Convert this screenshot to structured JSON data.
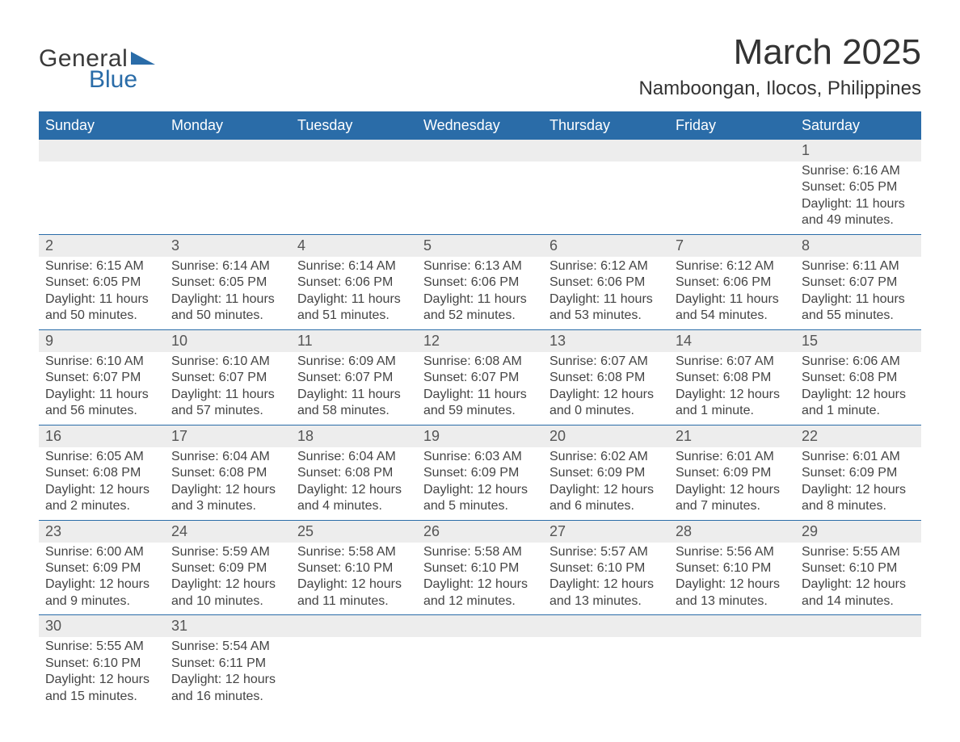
{
  "logo": {
    "text_general": "General",
    "text_blue": "Blue",
    "accent_color": "#2a6ca8"
  },
  "title": "March 2025",
  "location": "Namboongan, Ilocos, Philippines",
  "colors": {
    "header_bg": "#2a6ca8",
    "header_text": "#ffffff",
    "daynum_bg": "#ededed",
    "body_text": "#444444",
    "rule": "#2a6ca8",
    "page_bg": "#ffffff"
  },
  "typography": {
    "title_fontsize": 44,
    "location_fontsize": 24,
    "header_fontsize": 18,
    "daynum_fontsize": 18,
    "body_fontsize": 16
  },
  "day_headers": [
    "Sunday",
    "Monday",
    "Tuesday",
    "Wednesday",
    "Thursday",
    "Friday",
    "Saturday"
  ],
  "weeks": [
    [
      null,
      null,
      null,
      null,
      null,
      null,
      {
        "n": "1",
        "sunrise": "Sunrise: 6:16 AM",
        "sunset": "Sunset: 6:05 PM",
        "daylight": "Daylight: 11 hours and 49 minutes."
      }
    ],
    [
      {
        "n": "2",
        "sunrise": "Sunrise: 6:15 AM",
        "sunset": "Sunset: 6:05 PM",
        "daylight": "Daylight: 11 hours and 50 minutes."
      },
      {
        "n": "3",
        "sunrise": "Sunrise: 6:14 AM",
        "sunset": "Sunset: 6:05 PM",
        "daylight": "Daylight: 11 hours and 50 minutes."
      },
      {
        "n": "4",
        "sunrise": "Sunrise: 6:14 AM",
        "sunset": "Sunset: 6:06 PM",
        "daylight": "Daylight: 11 hours and 51 minutes."
      },
      {
        "n": "5",
        "sunrise": "Sunrise: 6:13 AM",
        "sunset": "Sunset: 6:06 PM",
        "daylight": "Daylight: 11 hours and 52 minutes."
      },
      {
        "n": "6",
        "sunrise": "Sunrise: 6:12 AM",
        "sunset": "Sunset: 6:06 PM",
        "daylight": "Daylight: 11 hours and 53 minutes."
      },
      {
        "n": "7",
        "sunrise": "Sunrise: 6:12 AM",
        "sunset": "Sunset: 6:06 PM",
        "daylight": "Daylight: 11 hours and 54 minutes."
      },
      {
        "n": "8",
        "sunrise": "Sunrise: 6:11 AM",
        "sunset": "Sunset: 6:07 PM",
        "daylight": "Daylight: 11 hours and 55 minutes."
      }
    ],
    [
      {
        "n": "9",
        "sunrise": "Sunrise: 6:10 AM",
        "sunset": "Sunset: 6:07 PM",
        "daylight": "Daylight: 11 hours and 56 minutes."
      },
      {
        "n": "10",
        "sunrise": "Sunrise: 6:10 AM",
        "sunset": "Sunset: 6:07 PM",
        "daylight": "Daylight: 11 hours and 57 minutes."
      },
      {
        "n": "11",
        "sunrise": "Sunrise: 6:09 AM",
        "sunset": "Sunset: 6:07 PM",
        "daylight": "Daylight: 11 hours and 58 minutes."
      },
      {
        "n": "12",
        "sunrise": "Sunrise: 6:08 AM",
        "sunset": "Sunset: 6:07 PM",
        "daylight": "Daylight: 11 hours and 59 minutes."
      },
      {
        "n": "13",
        "sunrise": "Sunrise: 6:07 AM",
        "sunset": "Sunset: 6:08 PM",
        "daylight": "Daylight: 12 hours and 0 minutes."
      },
      {
        "n": "14",
        "sunrise": "Sunrise: 6:07 AM",
        "sunset": "Sunset: 6:08 PM",
        "daylight": "Daylight: 12 hours and 1 minute."
      },
      {
        "n": "15",
        "sunrise": "Sunrise: 6:06 AM",
        "sunset": "Sunset: 6:08 PM",
        "daylight": "Daylight: 12 hours and 1 minute."
      }
    ],
    [
      {
        "n": "16",
        "sunrise": "Sunrise: 6:05 AM",
        "sunset": "Sunset: 6:08 PM",
        "daylight": "Daylight: 12 hours and 2 minutes."
      },
      {
        "n": "17",
        "sunrise": "Sunrise: 6:04 AM",
        "sunset": "Sunset: 6:08 PM",
        "daylight": "Daylight: 12 hours and 3 minutes."
      },
      {
        "n": "18",
        "sunrise": "Sunrise: 6:04 AM",
        "sunset": "Sunset: 6:08 PM",
        "daylight": "Daylight: 12 hours and 4 minutes."
      },
      {
        "n": "19",
        "sunrise": "Sunrise: 6:03 AM",
        "sunset": "Sunset: 6:09 PM",
        "daylight": "Daylight: 12 hours and 5 minutes."
      },
      {
        "n": "20",
        "sunrise": "Sunrise: 6:02 AM",
        "sunset": "Sunset: 6:09 PM",
        "daylight": "Daylight: 12 hours and 6 minutes."
      },
      {
        "n": "21",
        "sunrise": "Sunrise: 6:01 AM",
        "sunset": "Sunset: 6:09 PM",
        "daylight": "Daylight: 12 hours and 7 minutes."
      },
      {
        "n": "22",
        "sunrise": "Sunrise: 6:01 AM",
        "sunset": "Sunset: 6:09 PM",
        "daylight": "Daylight: 12 hours and 8 minutes."
      }
    ],
    [
      {
        "n": "23",
        "sunrise": "Sunrise: 6:00 AM",
        "sunset": "Sunset: 6:09 PM",
        "daylight": "Daylight: 12 hours and 9 minutes."
      },
      {
        "n": "24",
        "sunrise": "Sunrise: 5:59 AM",
        "sunset": "Sunset: 6:09 PM",
        "daylight": "Daylight: 12 hours and 10 minutes."
      },
      {
        "n": "25",
        "sunrise": "Sunrise: 5:58 AM",
        "sunset": "Sunset: 6:10 PM",
        "daylight": "Daylight: 12 hours and 11 minutes."
      },
      {
        "n": "26",
        "sunrise": "Sunrise: 5:58 AM",
        "sunset": "Sunset: 6:10 PM",
        "daylight": "Daylight: 12 hours and 12 minutes."
      },
      {
        "n": "27",
        "sunrise": "Sunrise: 5:57 AM",
        "sunset": "Sunset: 6:10 PM",
        "daylight": "Daylight: 12 hours and 13 minutes."
      },
      {
        "n": "28",
        "sunrise": "Sunrise: 5:56 AM",
        "sunset": "Sunset: 6:10 PM",
        "daylight": "Daylight: 12 hours and 13 minutes."
      },
      {
        "n": "29",
        "sunrise": "Sunrise: 5:55 AM",
        "sunset": "Sunset: 6:10 PM",
        "daylight": "Daylight: 12 hours and 14 minutes."
      }
    ],
    [
      {
        "n": "30",
        "sunrise": "Sunrise: 5:55 AM",
        "sunset": "Sunset: 6:10 PM",
        "daylight": "Daylight: 12 hours and 15 minutes."
      },
      {
        "n": "31",
        "sunrise": "Sunrise: 5:54 AM",
        "sunset": "Sunset: 6:11 PM",
        "daylight": "Daylight: 12 hours and 16 minutes."
      },
      null,
      null,
      null,
      null,
      null
    ]
  ]
}
